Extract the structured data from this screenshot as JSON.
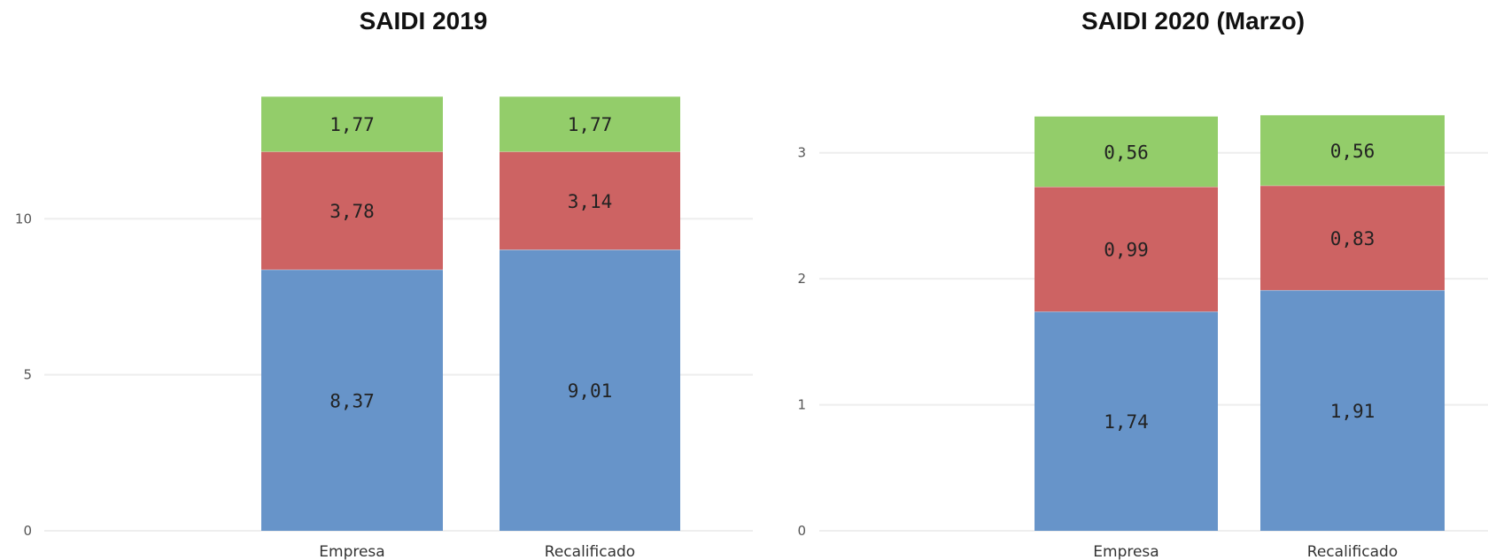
{
  "colors": {
    "blue": "#6794c9",
    "red": "#cd6363",
    "green": "#93cd6a",
    "grid": "#eeeeee"
  },
  "chart_data": [
    {
      "type": "bar",
      "stacked": true,
      "title": "SAIDI 2019",
      "categories": [
        "Empresa",
        "Recalificado"
      ],
      "ylim": [
        0,
        13.92
      ],
      "yticks": [
        "0",
        "5",
        "10"
      ],
      "ytick_values": [
        0,
        5,
        10
      ],
      "grid": true,
      "series": [
        {
          "values": [
            8.37,
            9.01
          ],
          "labels": [
            "8,37",
            "9,01"
          ],
          "color": "#6794c9"
        },
        {
          "values": [
            3.78,
            3.14
          ],
          "labels": [
            "3,78",
            "3,14"
          ],
          "color": "#cd6363"
        },
        {
          "values": [
            1.77,
            1.77
          ],
          "labels": [
            "1,77",
            "1,77"
          ],
          "color": "#93cd6a"
        }
      ]
    },
    {
      "type": "bar",
      "stacked": true,
      "title": "SAIDI 2020 (Marzo)",
      "categories": [
        "Empresa",
        "Recalificado"
      ],
      "ylim": [
        0,
        3.3
      ],
      "yticks": [
        "0",
        "1",
        "2",
        "3"
      ],
      "ytick_values": [
        0,
        1,
        2,
        3
      ],
      "grid": true,
      "series": [
        {
          "values": [
            1.74,
            1.91
          ],
          "labels": [
            "1,74",
            "1,91"
          ],
          "color": "#6794c9"
        },
        {
          "values": [
            0.99,
            0.83
          ],
          "labels": [
            "0,99",
            "0,83"
          ],
          "color": "#cd6363"
        },
        {
          "values": [
            0.56,
            0.56
          ],
          "labels": [
            "0,56",
            "0,56"
          ],
          "color": "#93cd6a"
        }
      ]
    }
  ]
}
